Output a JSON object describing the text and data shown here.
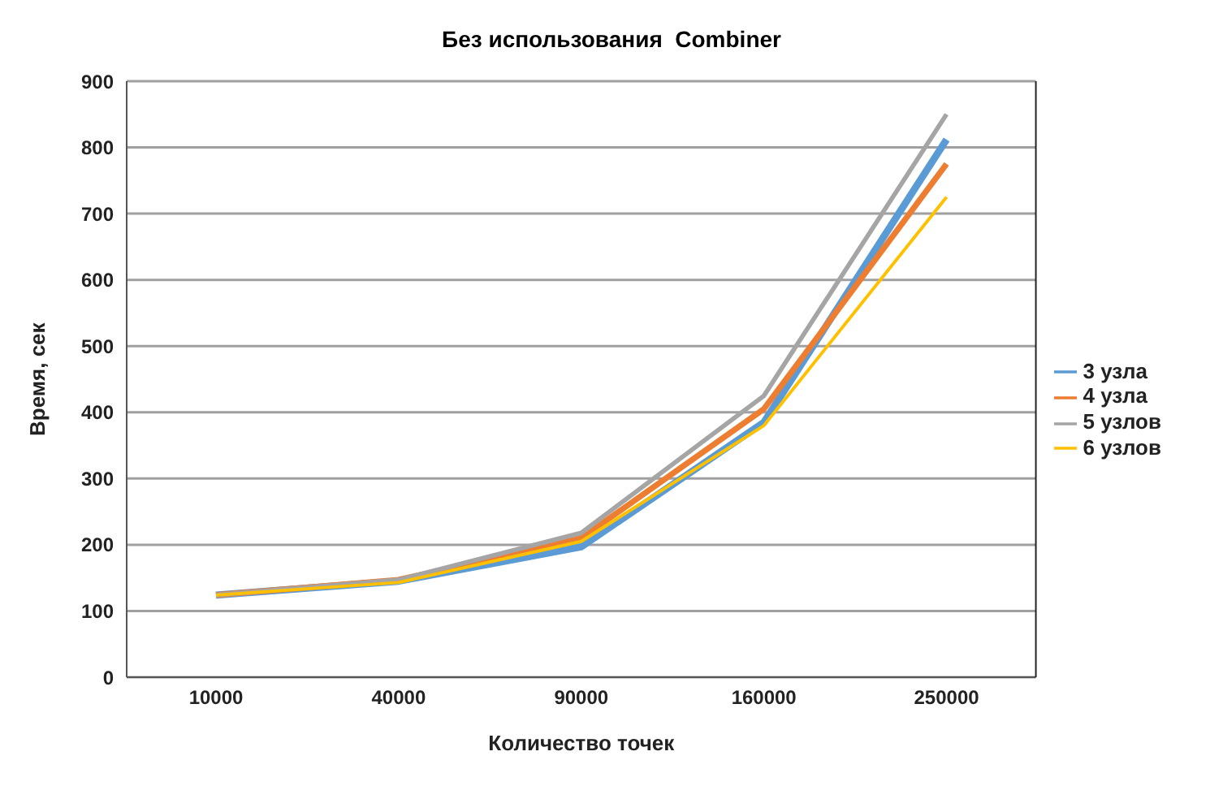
{
  "chart_data": {
    "type": "line",
    "title": "Без использования  Combiner",
    "xlabel": "Количество точек",
    "ylabel": "Время, сек",
    "categories": [
      "10000",
      "40000",
      "90000",
      "160000",
      "250000"
    ],
    "series": [
      {
        "name": "3 узла",
        "color": "#5b9bd5",
        "values": [
          124,
          145,
          197,
          385,
          812
        ]
      },
      {
        "name": "4 узла",
        "color": "#ed7d31",
        "values": [
          124,
          147,
          210,
          405,
          775
        ]
      },
      {
        "name": "5 узлов",
        "color": "#a5a5a5",
        "values": [
          124,
          147,
          218,
          425,
          850
        ]
      },
      {
        "name": "6 узлов",
        "color": "#ffc000",
        "values": [
          124,
          143,
          205,
          380,
          725
        ]
      }
    ],
    "ylim": [
      0,
      900
    ],
    "yticks": [
      0,
      100,
      200,
      300,
      400,
      500,
      600,
      700,
      800,
      900
    ],
    "grid": "y",
    "legend": "right",
    "marker": "none",
    "line_style": "solid"
  }
}
